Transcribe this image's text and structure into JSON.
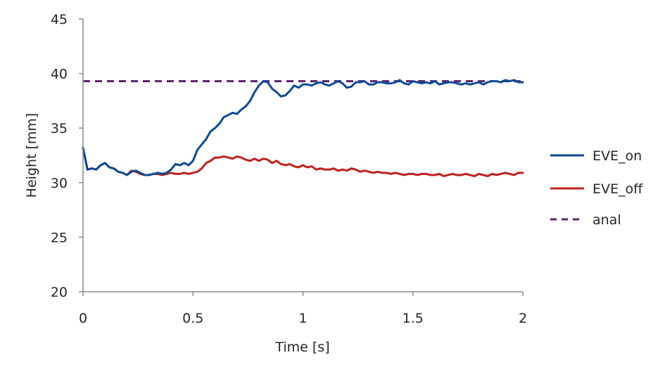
{
  "chart_data": {
    "type": "line",
    "xlabel": "Time [s]",
    "ylabel": "Height [mm]",
    "xlim": [
      0,
      2
    ],
    "ylim": [
      20,
      45
    ],
    "xticks": [
      0,
      0.5,
      1,
      1.5,
      2
    ],
    "xtick_labels": [
      "0",
      "0.5",
      "1",
      "1.5",
      "2"
    ],
    "yticks": [
      20,
      25,
      30,
      35,
      40,
      45
    ],
    "ytick_labels": [
      "20",
      "25",
      "30",
      "35",
      "40",
      "45"
    ],
    "grid": false,
    "legend_position": "right",
    "series": [
      {
        "name": "EVE_on",
        "color": "#0b4a96",
        "style": "solid",
        "points": [
          [
            0.0,
            33.2
          ],
          [
            0.02,
            31.2
          ],
          [
            0.04,
            31.3
          ],
          [
            0.06,
            31.2
          ],
          [
            0.08,
            31.6
          ],
          [
            0.1,
            31.8
          ],
          [
            0.12,
            31.4
          ],
          [
            0.14,
            31.3
          ],
          [
            0.16,
            31.0
          ],
          [
            0.18,
            30.9
          ],
          [
            0.2,
            30.7
          ],
          [
            0.22,
            31.0
          ],
          [
            0.24,
            31.1
          ],
          [
            0.26,
            30.9
          ],
          [
            0.28,
            30.7
          ],
          [
            0.3,
            30.7
          ],
          [
            0.32,
            30.8
          ],
          [
            0.34,
            30.9
          ],
          [
            0.36,
            30.8
          ],
          [
            0.38,
            30.9
          ],
          [
            0.4,
            31.2
          ],
          [
            0.42,
            31.7
          ],
          [
            0.44,
            31.6
          ],
          [
            0.46,
            31.8
          ],
          [
            0.48,
            31.6
          ],
          [
            0.5,
            32.0
          ],
          [
            0.52,
            33.0
          ],
          [
            0.54,
            33.5
          ],
          [
            0.56,
            34.0
          ],
          [
            0.58,
            34.7
          ],
          [
            0.6,
            35.0
          ],
          [
            0.62,
            35.4
          ],
          [
            0.64,
            36.0
          ],
          [
            0.66,
            36.2
          ],
          [
            0.68,
            36.4
          ],
          [
            0.7,
            36.3
          ],
          [
            0.72,
            36.7
          ],
          [
            0.74,
            37.0
          ],
          [
            0.76,
            37.5
          ],
          [
            0.78,
            38.3
          ],
          [
            0.8,
            38.9
          ],
          [
            0.82,
            39.3
          ],
          [
            0.84,
            39.2
          ],
          [
            0.86,
            38.6
          ],
          [
            0.88,
            38.3
          ],
          [
            0.9,
            37.9
          ],
          [
            0.92,
            38.0
          ],
          [
            0.94,
            38.4
          ],
          [
            0.96,
            38.9
          ],
          [
            0.98,
            38.7
          ],
          [
            1.0,
            39.0
          ],
          [
            1.02,
            39.0
          ],
          [
            1.04,
            38.9
          ],
          [
            1.06,
            39.1
          ],
          [
            1.08,
            39.2
          ],
          [
            1.1,
            39.0
          ],
          [
            1.12,
            38.9
          ],
          [
            1.14,
            39.1
          ],
          [
            1.16,
            39.3
          ],
          [
            1.18,
            39.1
          ],
          [
            1.2,
            38.7
          ],
          [
            1.22,
            38.8
          ],
          [
            1.24,
            39.2
          ],
          [
            1.26,
            39.2
          ],
          [
            1.28,
            39.3
          ],
          [
            1.3,
            39.0
          ],
          [
            1.32,
            39.0
          ],
          [
            1.34,
            39.2
          ],
          [
            1.36,
            39.2
          ],
          [
            1.38,
            39.1
          ],
          [
            1.4,
            39.1
          ],
          [
            1.42,
            39.2
          ],
          [
            1.44,
            39.4
          ],
          [
            1.46,
            39.1
          ],
          [
            1.48,
            39.0
          ],
          [
            1.5,
            39.3
          ],
          [
            1.52,
            39.2
          ],
          [
            1.54,
            39.1
          ],
          [
            1.56,
            39.2
          ],
          [
            1.58,
            39.1
          ],
          [
            1.6,
            39.3
          ],
          [
            1.62,
            39.0
          ],
          [
            1.64,
            39.1
          ],
          [
            1.66,
            39.2
          ],
          [
            1.68,
            39.2
          ],
          [
            1.7,
            39.1
          ],
          [
            1.72,
            39.0
          ],
          [
            1.74,
            39.1
          ],
          [
            1.76,
            39.0
          ],
          [
            1.78,
            39.1
          ],
          [
            1.8,
            39.2
          ],
          [
            1.82,
            39.0
          ],
          [
            1.84,
            39.2
          ],
          [
            1.86,
            39.3
          ],
          [
            1.88,
            39.3
          ],
          [
            1.9,
            39.2
          ],
          [
            1.92,
            39.4
          ],
          [
            1.94,
            39.3
          ],
          [
            1.96,
            39.4
          ],
          [
            1.98,
            39.2
          ],
          [
            2.0,
            39.2
          ]
        ]
      },
      {
        "name": "EVE_off",
        "color": "#c0201e",
        "style": "solid",
        "points": [
          [
            0.0,
            33.2
          ],
          [
            0.02,
            31.2
          ],
          [
            0.04,
            31.3
          ],
          [
            0.06,
            31.2
          ],
          [
            0.08,
            31.6
          ],
          [
            0.1,
            31.8
          ],
          [
            0.12,
            31.4
          ],
          [
            0.14,
            31.3
          ],
          [
            0.16,
            31.0
          ],
          [
            0.18,
            30.9
          ],
          [
            0.2,
            30.7
          ],
          [
            0.22,
            31.1
          ],
          [
            0.24,
            31.0
          ],
          [
            0.26,
            30.8
          ],
          [
            0.28,
            30.7
          ],
          [
            0.3,
            30.7
          ],
          [
            0.32,
            30.8
          ],
          [
            0.34,
            30.8
          ],
          [
            0.36,
            30.7
          ],
          [
            0.38,
            30.8
          ],
          [
            0.4,
            30.9
          ],
          [
            0.42,
            30.8
          ],
          [
            0.44,
            30.8
          ],
          [
            0.46,
            30.9
          ],
          [
            0.48,
            30.8
          ],
          [
            0.5,
            30.9
          ],
          [
            0.52,
            31.0
          ],
          [
            0.54,
            31.3
          ],
          [
            0.56,
            31.8
          ],
          [
            0.58,
            32.0
          ],
          [
            0.6,
            32.3
          ],
          [
            0.62,
            32.3
          ],
          [
            0.64,
            32.4
          ],
          [
            0.66,
            32.3
          ],
          [
            0.68,
            32.2
          ],
          [
            0.7,
            32.4
          ],
          [
            0.72,
            32.3
          ],
          [
            0.74,
            32.1
          ],
          [
            0.76,
            32.0
          ],
          [
            0.78,
            32.2
          ],
          [
            0.8,
            32.0
          ],
          [
            0.82,
            32.2
          ],
          [
            0.84,
            32.1
          ],
          [
            0.86,
            31.8
          ],
          [
            0.88,
            32.0
          ],
          [
            0.9,
            31.7
          ],
          [
            0.92,
            31.6
          ],
          [
            0.94,
            31.7
          ],
          [
            0.96,
            31.5
          ],
          [
            0.98,
            31.4
          ],
          [
            1.0,
            31.6
          ],
          [
            1.02,
            31.4
          ],
          [
            1.04,
            31.5
          ],
          [
            1.06,
            31.2
          ],
          [
            1.08,
            31.3
          ],
          [
            1.1,
            31.2
          ],
          [
            1.12,
            31.2
          ],
          [
            1.14,
            31.3
          ],
          [
            1.16,
            31.1
          ],
          [
            1.18,
            31.2
          ],
          [
            1.2,
            31.1
          ],
          [
            1.22,
            31.3
          ],
          [
            1.24,
            31.2
          ],
          [
            1.26,
            31.0
          ],
          [
            1.28,
            31.1
          ],
          [
            1.3,
            31.0
          ],
          [
            1.32,
            30.9
          ],
          [
            1.34,
            31.0
          ],
          [
            1.36,
            30.9
          ],
          [
            1.38,
            30.9
          ],
          [
            1.4,
            30.8
          ],
          [
            1.42,
            30.9
          ],
          [
            1.44,
            30.8
          ],
          [
            1.46,
            30.7
          ],
          [
            1.48,
            30.8
          ],
          [
            1.5,
            30.8
          ],
          [
            1.52,
            30.7
          ],
          [
            1.54,
            30.8
          ],
          [
            1.56,
            30.8
          ],
          [
            1.58,
            30.7
          ],
          [
            1.6,
            30.7
          ],
          [
            1.62,
            30.8
          ],
          [
            1.64,
            30.6
          ],
          [
            1.66,
            30.7
          ],
          [
            1.68,
            30.8
          ],
          [
            1.7,
            30.7
          ],
          [
            1.72,
            30.7
          ],
          [
            1.74,
            30.8
          ],
          [
            1.76,
            30.7
          ],
          [
            1.78,
            30.6
          ],
          [
            1.8,
            30.8
          ],
          [
            1.82,
            30.7
          ],
          [
            1.84,
            30.6
          ],
          [
            1.86,
            30.8
          ],
          [
            1.88,
            30.7
          ],
          [
            1.9,
            30.8
          ],
          [
            1.92,
            30.9
          ],
          [
            1.94,
            30.8
          ],
          [
            1.96,
            30.7
          ],
          [
            1.98,
            30.9
          ],
          [
            2.0,
            30.9
          ]
        ]
      },
      {
        "name": "anal",
        "color": "#5e2370",
        "style": "dashed",
        "points": [
          [
            0.0,
            39.3
          ],
          [
            2.0,
            39.3
          ]
        ]
      }
    ]
  }
}
